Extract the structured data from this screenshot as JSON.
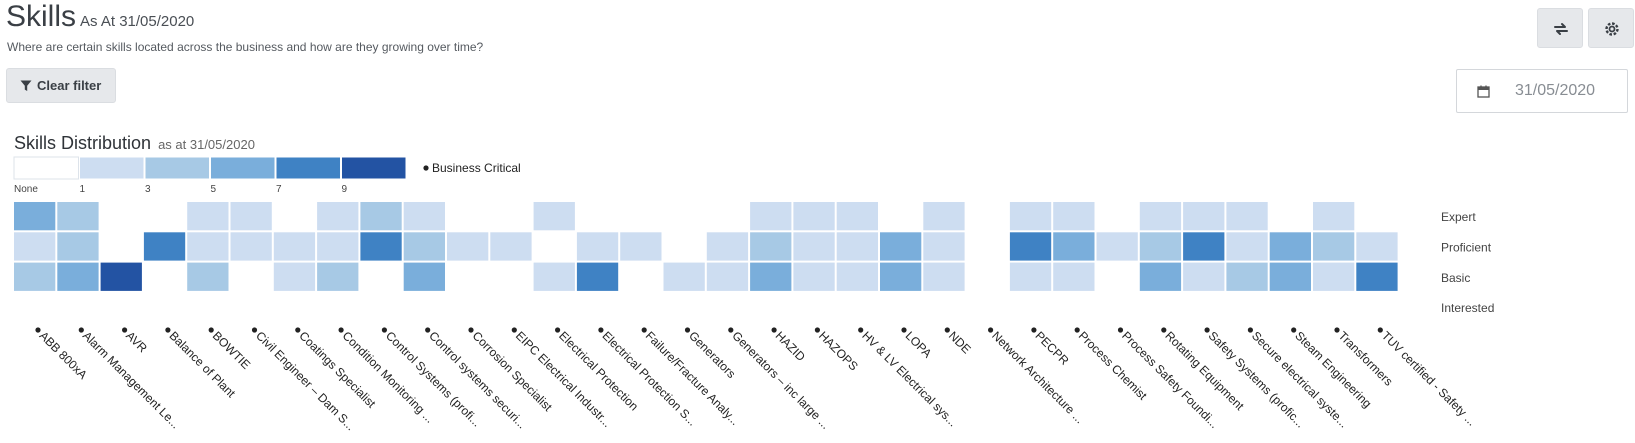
{
  "header": {
    "title": "Skills",
    "as_at": "As At 31/05/2020",
    "subtitle": "Where are certain skills located across the business and how are they growing over time?"
  },
  "toolbar": {
    "refresh_icon": "refresh-icon",
    "settings_icon": "gear-icon",
    "clear_filter_label": "Clear filter",
    "filter_icon": "filter-icon",
    "date_icon": "calendar-icon",
    "date_value": "31/05/2020"
  },
  "chart_data": {
    "type": "heatmap",
    "title": "Skills Distribution",
    "subtitle": "as at 31/05/2020",
    "legend": {
      "labels": [
        "None",
        "1",
        "3",
        "5",
        "7",
        "9"
      ],
      "colors": [
        "#ffffff",
        "#cdddf1",
        "#a7c9e5",
        "#7aaedb",
        "#3f82c4",
        "#2353a3"
      ],
      "marker_label": "Business Critical"
    },
    "levels": [
      "Expert",
      "Proficient",
      "Basic",
      "Interested"
    ],
    "skills": [
      "ABB 800xA",
      "Alarm Management Le...",
      "AVR",
      "Balance of Plant",
      "BOWTIE",
      "Civil Engineer – Dam S...",
      "Coatings Specialist",
      "Condition Monitoring ...",
      "Control Systems (profi...",
      "Control systems securi...",
      "Corrosion Specialist",
      "EIPC Electrical Industr...",
      "Electrical Protection",
      "Electrical Protection S...",
      "Failure/Fracture Analy...",
      "Generators",
      "Generators – inc large ...",
      "HAZID",
      "HAZOPS",
      "HV & LV Electrical sys...",
      "LOPA",
      "NDE",
      "Network Architecture ...",
      "PECPR",
      "Process Chemist",
      "Process Safety Foundi...",
      "Rotating Equipment",
      "Safety Systems (profic...",
      "Secure electrical syste...",
      "Steam Engineering",
      "Transformers",
      "TUV certified - Safety ..."
    ],
    "values": [
      [
        5,
        3,
        0,
        0,
        1,
        1,
        0,
        1,
        3,
        1,
        0,
        0,
        1,
        0,
        0,
        0,
        0,
        1,
        1,
        1,
        0,
        1,
        0,
        1,
        1,
        0,
        1,
        1,
        1,
        0,
        1,
        0
      ],
      [
        1,
        3,
        0,
        7,
        1,
        1,
        1,
        1,
        7,
        3,
        1,
        1,
        0,
        1,
        1,
        0,
        1,
        3,
        1,
        1,
        5,
        1,
        0,
        7,
        5,
        1,
        3,
        7,
        1,
        5,
        3,
        1
      ],
      [
        3,
        5,
        9,
        0,
        3,
        0,
        1,
        3,
        0,
        5,
        0,
        0,
        1,
        7,
        0,
        1,
        1,
        5,
        1,
        1,
        5,
        1,
        0,
        1,
        1,
        0,
        5,
        1,
        3,
        5,
        1,
        7
      ],
      [
        0,
        0,
        0,
        0,
        0,
        0,
        0,
        0,
        0,
        0,
        0,
        0,
        0,
        0,
        0,
        0,
        0,
        0,
        0,
        0,
        0,
        0,
        0,
        0,
        0,
        0,
        0,
        0,
        0,
        0,
        0,
        0
      ]
    ],
    "business_critical": "all skills"
  }
}
